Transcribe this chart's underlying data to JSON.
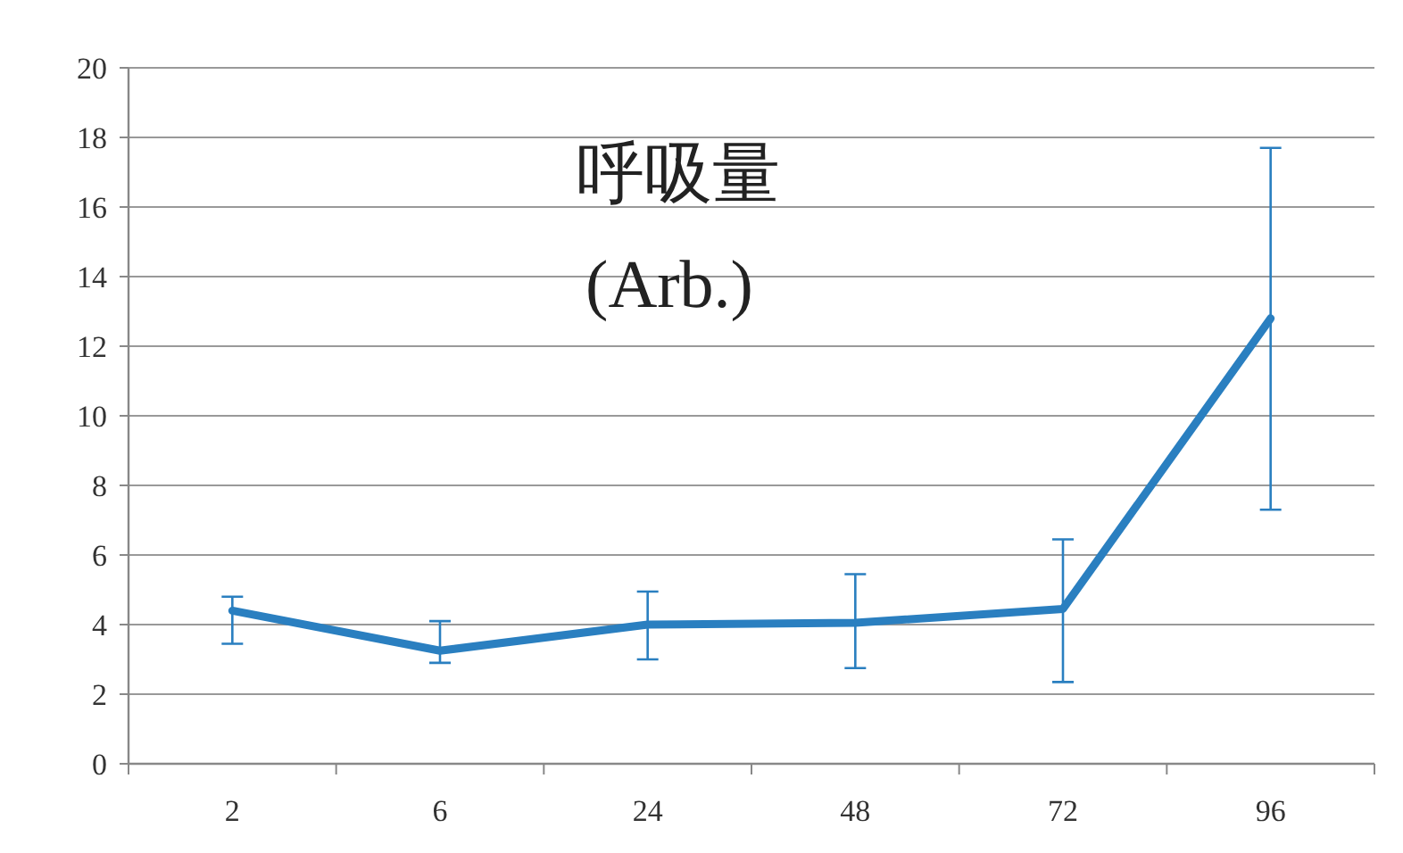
{
  "chart_data": {
    "type": "line",
    "title": "呼吸量",
    "subtitle": "(Arb.)",
    "categories": [
      "2",
      "6",
      "24",
      "48",
      "72",
      "96"
    ],
    "values": [
      4.4,
      3.25,
      4.0,
      4.05,
      4.45,
      12.8
    ],
    "errors": [
      [
        3.45,
        4.8
      ],
      [
        2.9,
        4.1
      ],
      [
        3.0,
        4.95
      ],
      [
        2.75,
        5.45
      ],
      [
        2.35,
        6.45
      ],
      [
        7.3,
        17.7
      ]
    ],
    "color": "#2a7fc0",
    "ylim": [
      0,
      20
    ],
    "yticks": [
      0,
      2,
      4,
      6,
      8,
      10,
      12,
      14,
      16,
      18,
      20
    ],
    "grid": "y",
    "legend": false,
    "marker": "none",
    "line_style": "solid"
  }
}
